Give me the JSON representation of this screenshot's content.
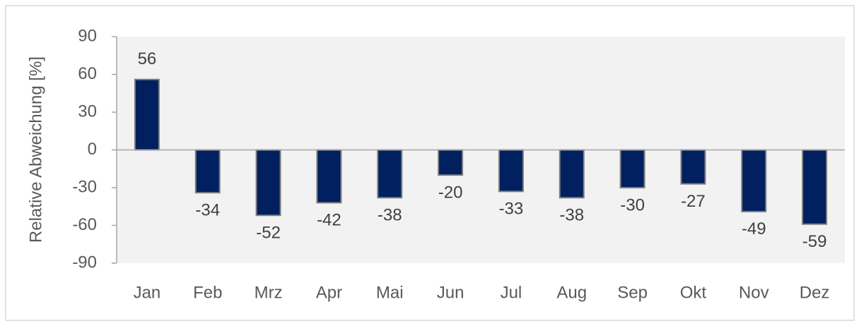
{
  "chart_data": {
    "type": "bar",
    "y_label": "Relative Abweichung [%]",
    "categories": [
      "Jan",
      "Feb",
      "Mrz",
      "Apr",
      "Mai",
      "Jun",
      "Jul",
      "Aug",
      "Sep",
      "Okt",
      "Nov",
      "Dez"
    ],
    "values": [
      56,
      -34,
      -52,
      -42,
      -38,
      -20,
      -33,
      -38,
      -30,
      -27,
      -49,
      -59
    ],
    "color": "#002060",
    "ylim": [
      -90,
      90
    ],
    "yticks": [
      -90,
      -60,
      -30,
      0,
      30,
      60,
      90
    ],
    "grid": false
  }
}
